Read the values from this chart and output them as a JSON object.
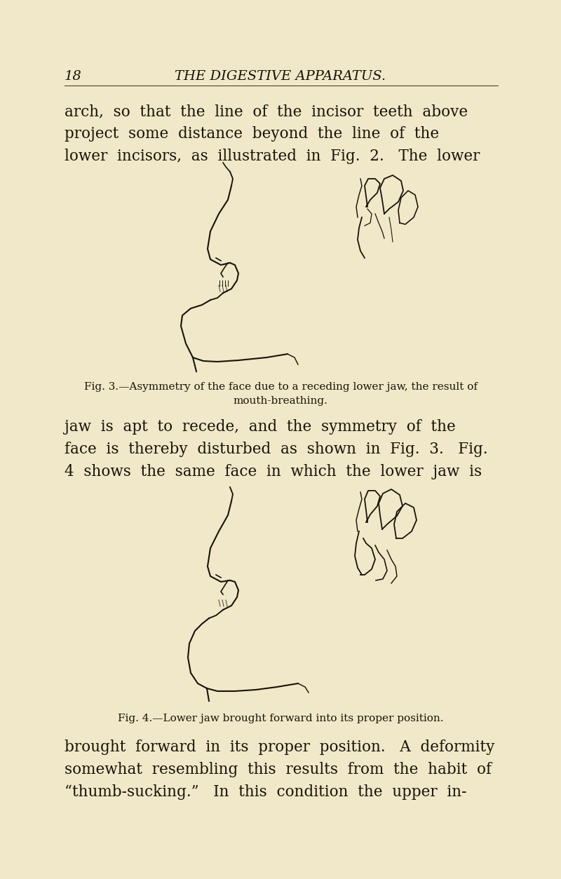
{
  "bg_color": "#f0e8c8",
  "page_number": "18",
  "header_title": "THE DIGESTIVE APPARATUS.",
  "text_color": "#1a1208",
  "para1_lines": [
    "arch,  so  that  the  line  of  the  incisor  teeth  above",
    "project  some  distance  beyond  the  line  of  the",
    "lower  incisors,  as  illustrated  in  Fig.  2.   The  lower"
  ],
  "fig3_caption_line1": "Fig. 3.—Asymmetry of the face due to a receding lower jaw, the result of",
  "fig3_caption_line2": "mouth-breathing.",
  "para2_lines": [
    "jaw  is  apt  to  recede,  and  the  symmetry  of  the",
    "face  is  thereby  disturbed  as  shown  in  Fig.  3.   Fig.",
    "4  shows  the  same  face  in  which  the  lower  jaw  is"
  ],
  "fig4_caption": "Fig. 4.—Lower jaw brought forward into its proper position.",
  "para3_lines": [
    "brought  forward  in  its  proper  position.   A  deformity",
    "somewhat  resembling  this  results  from  the  habit  of",
    "“thumb-sucking.”   In  this  condition  the  upper  in-"
  ]
}
